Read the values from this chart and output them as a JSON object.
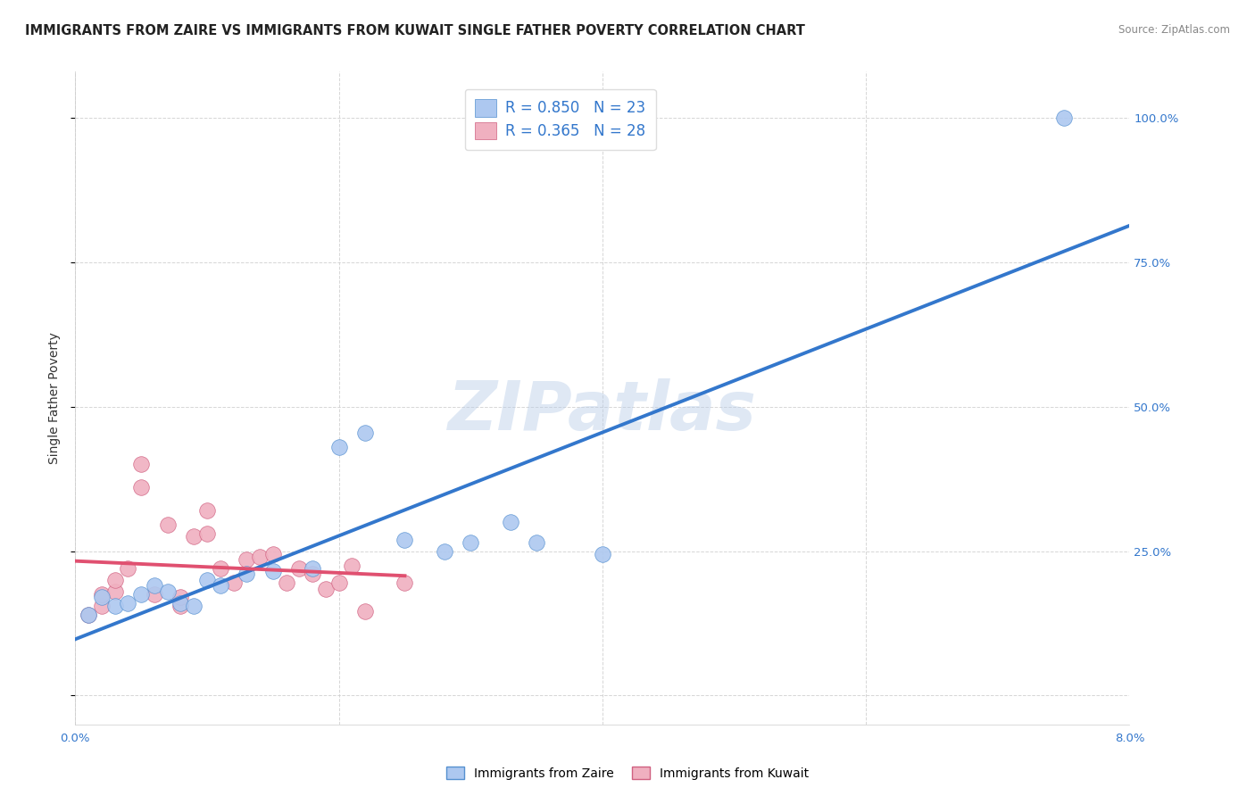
{
  "title": "IMMIGRANTS FROM ZAIRE VS IMMIGRANTS FROM KUWAIT SINGLE FATHER POVERTY CORRELATION CHART",
  "source": "Source: ZipAtlas.com",
  "ylabel": "Single Father Poverty",
  "xmin": 0.0,
  "xmax": 0.08,
  "ymin": -0.05,
  "ymax": 1.08,
  "y_ticks": [
    0.0,
    0.25,
    0.5,
    0.75,
    1.0
  ],
  "y_tick_labels": [
    "",
    "25.0%",
    "50.0%",
    "75.0%",
    "100.0%"
  ],
  "x_ticks": [
    0.0,
    0.02,
    0.04,
    0.06,
    0.08
  ],
  "x_tick_labels": [
    "0.0%",
    "",
    "",
    "",
    "8.0%"
  ],
  "legend_line1": "R = 0.850   N = 23",
  "legend_line2": "R = 0.365   N = 28",
  "zaire_fill_color": "#adc8f0",
  "zaire_edge_color": "#5590d0",
  "kuwait_fill_color": "#f0b0c0",
  "kuwait_edge_color": "#d06080",
  "zaire_line_color": "#3377cc",
  "kuwait_line_color": "#e05070",
  "watermark": "ZIPatlas",
  "background_color": "#ffffff",
  "grid_color": "#cccccc",
  "zaire_scatter_x": [
    0.001,
    0.002,
    0.003,
    0.004,
    0.005,
    0.006,
    0.007,
    0.008,
    0.009,
    0.01,
    0.011,
    0.013,
    0.015,
    0.018,
    0.02,
    0.022,
    0.025,
    0.028,
    0.03,
    0.033,
    0.035,
    0.04,
    0.075
  ],
  "zaire_scatter_y": [
    0.14,
    0.17,
    0.155,
    0.16,
    0.175,
    0.19,
    0.18,
    0.16,
    0.155,
    0.2,
    0.19,
    0.21,
    0.215,
    0.22,
    0.43,
    0.455,
    0.27,
    0.25,
    0.265,
    0.3,
    0.265,
    0.245,
    1.0
  ],
  "kuwait_scatter_x": [
    0.001,
    0.002,
    0.002,
    0.003,
    0.003,
    0.004,
    0.005,
    0.005,
    0.006,
    0.007,
    0.008,
    0.008,
    0.009,
    0.01,
    0.01,
    0.011,
    0.012,
    0.013,
    0.014,
    0.015,
    0.016,
    0.017,
    0.018,
    0.019,
    0.02,
    0.021,
    0.022,
    0.025
  ],
  "kuwait_scatter_y": [
    0.14,
    0.155,
    0.175,
    0.18,
    0.2,
    0.22,
    0.36,
    0.4,
    0.175,
    0.295,
    0.155,
    0.17,
    0.275,
    0.28,
    0.32,
    0.22,
    0.195,
    0.235,
    0.24,
    0.245,
    0.195,
    0.22,
    0.21,
    0.185,
    0.195,
    0.225,
    0.145,
    0.195
  ],
  "title_fontsize": 10.5,
  "axis_label_fontsize": 10,
  "tick_fontsize": 9.5,
  "legend_fontsize": 12
}
